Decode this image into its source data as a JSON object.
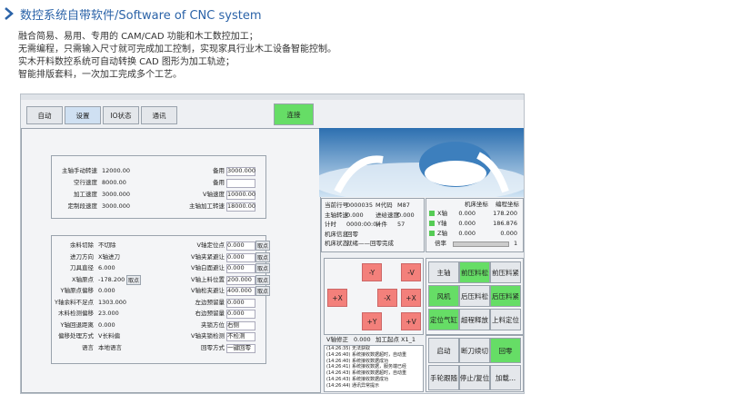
{
  "header": {
    "title": "数控系统自带软件/Software of CNC system"
  },
  "intro": [
    "融合简易、易用、专用的 CAM/CAD 功能和木工数控加工；",
    "无需编程，只需输入尺寸就可完成加工控制，实现家具行业木工设备智能控制。",
    "实木开料数控系统可自动转换 CAD 图形为加工轨迹；",
    "智能排版套料，一次加工完成多个工艺。"
  ],
  "software": {
    "tabs": [
      "自动",
      "设置",
      "IO状态",
      "通讯"
    ],
    "connect": "连接",
    "spindle_left": [
      {
        "label": "主轴手动转速",
        "value": "12000.00"
      },
      {
        "label": "空行速度",
        "value": "8000.00"
      },
      {
        "label": "加工速度",
        "value": "3000.000"
      },
      {
        "label": "定制段速度",
        "value": "3000.000"
      }
    ],
    "spindle_right": [
      {
        "label": "备用",
        "value": "3000.000"
      },
      {
        "label": "备用"
      },
      {
        "label": "V轴速度",
        "value": "10000.00"
      },
      {
        "label": "主轴加工转速",
        "value": "18000.00"
      }
    ],
    "params_left": [
      {
        "label": "余料切除",
        "value": "不切除"
      },
      {
        "label": "进刀方向",
        "value": "X轴进刀"
      },
      {
        "label": "刀具直径",
        "value": "6.000"
      },
      {
        "label": "X轴原点",
        "value": "-178.200",
        "button": "取点"
      },
      {
        "label": "Y轴原点偏移",
        "value": "0.000"
      },
      {
        "label": "Y轴余料不足点",
        "value": "1303.000"
      },
      {
        "label": "木料检测偏移",
        "value": "23.000"
      },
      {
        "label": "Y轴回退距离",
        "value": "0.000"
      },
      {
        "label": "偏移处理方式",
        "value": "V长料偏"
      },
      {
        "label": "语言",
        "value": "本地语言"
      }
    ],
    "params_right": [
      {
        "label": "V轴定位点",
        "value": "0.000",
        "button": "取点"
      },
      {
        "label": "V轴夹紧避让",
        "value": "0.000",
        "button": "取点"
      },
      {
        "label": "V轴白面避让",
        "value": "0.000",
        "button": "取点"
      },
      {
        "label": "V轴上料位置",
        "value": "200.000",
        "button": "取点"
      },
      {
        "label": "V轴松夹避让",
        "value": "400.000",
        "button": "取点"
      },
      {
        "label": "左边预留量",
        "value": "0.000"
      },
      {
        "label": "右边预留量",
        "value": "0.000"
      },
      {
        "label": "夹锁方位",
        "value": "右侧"
      },
      {
        "label": "V轴夹锁检测",
        "value": "不检测"
      },
      {
        "label": "回零方式",
        "value": "一键回零"
      }
    ],
    "status": [
      [
        {
          "label": "当前行号",
          "value": "0000035"
        },
        {
          "label": "M代码",
          "value": "M87"
        }
      ],
      [
        {
          "label": "主轴转速",
          "value": "0.000"
        },
        {
          "label": "进给速度",
          "value": "0.000"
        }
      ],
      [
        {
          "label": "计时",
          "value": "0000:00:04"
        },
        {
          "label": "计件",
          "value": "57"
        }
      ],
      [
        {
          "label": "机床信息",
          "value": "回零"
        }
      ],
      [
        {
          "label": "机床状态",
          "value": "就绪——回零完成"
        }
      ]
    ],
    "coords": {
      "headers": [
        "机床坐标",
        "编程坐标"
      ],
      "rows": [
        {
          "axis": "X轴",
          "machine": "0.000",
          "program": "178.200"
        },
        {
          "axis": "Y轴",
          "machine": "0.000",
          "program": "186.876"
        },
        {
          "axis": "Z轴",
          "machine": "0.000",
          "program": "0.000"
        }
      ],
      "rate_label": "倍率",
      "rate": "1"
    },
    "jog": [
      "-Y",
      "-V",
      "+X",
      "-X",
      "+X",
      "+Y",
      "+V"
    ],
    "v_fix": {
      "label": "V轴修正",
      "value": "0.000",
      "start_label": "加工起点",
      "start": "X1_1"
    },
    "log": [
      "(14:26:35) 无法获取",
      "(14:26:40) 系统接收数据超时，自动重",
      "(14:26:40) 系统接收数据成功",
      "(14:26:41) 系统接收数据，服务端已经",
      "(14:26:43) 系统接收数据超时，自动重",
      "(14:26:43) 系统接收数据成功",
      "(14:26:44) 通讯异常提示"
    ],
    "functions": [
      "主轴",
      "前压料松",
      "前压料紧",
      "风机",
      "后压料松",
      "后压料紧",
      "定位气缸",
      "超程释放",
      "上料定位"
    ],
    "controls": [
      "启动",
      "断刀续切",
      "回零",
      "手轮跟随",
      "停止/复位",
      "加载..."
    ]
  }
}
